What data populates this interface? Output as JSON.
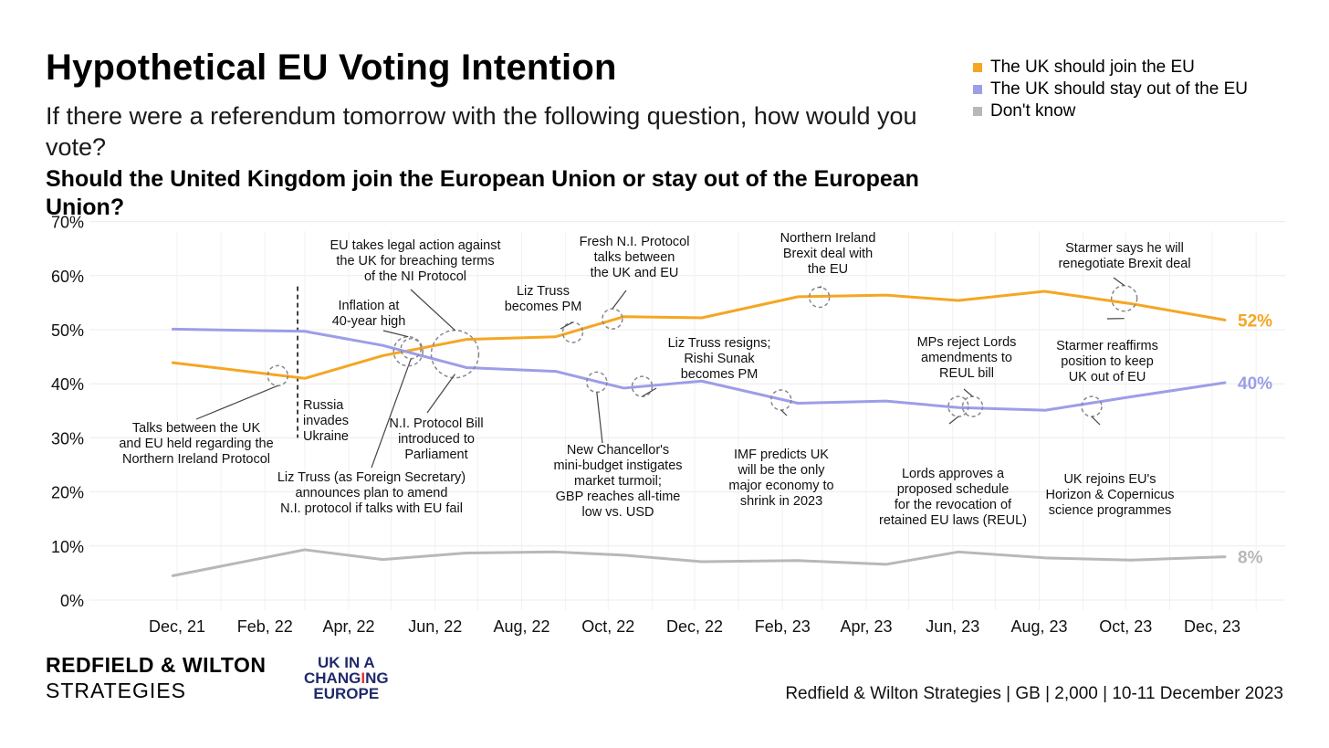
{
  "title": "Hypothetical EU Voting Intention",
  "subtitle": "If there were a referendum tomorrow with the following question, how would you vote?",
  "question": "Should the United Kingdom join the European Union or stay out of the European Union?",
  "legend": [
    {
      "label": "The UK should join the EU",
      "color": "#f5a623"
    },
    {
      "label": "The UK should stay out of the EU",
      "color": "#9c9ee8"
    },
    {
      "label": "Don't know",
      "color": "#b8b8b8"
    }
  ],
  "footer": {
    "logo_line1": "REDFIELD & WILTON",
    "logo_line2": "STRATEGIES",
    "logo2_line1": "UK IN A",
    "logo2_line2a": "CHANG",
    "logo2_line2b": "I",
    "logo2_line2c": "NG",
    "logo2_line3": "EUROPE",
    "source": "Redfield & Wilton Strategies | GB | 2,000 | 10-11 December 2023"
  },
  "chart_data": {
    "type": "line",
    "x_tick_labels": [
      "Dec, 21",
      "Feb, 22",
      "Apr, 22",
      "Jun, 22",
      "Aug, 22",
      "Oct, 22",
      "Dec, 22",
      "Feb, 23",
      "Apr, 23",
      "Jun, 23",
      "Aug, 23",
      "Oct, 23",
      "Dec, 23"
    ],
    "y_tick_labels": [
      "0%",
      "10%",
      "20%",
      "30%",
      "40%",
      "50%",
      "60%",
      "70%"
    ],
    "ylim": [
      0,
      70
    ],
    "grid": true,
    "legend_position": "top-right",
    "x": [
      "2021-11-28",
      "2022-03-01",
      "2022-04-25",
      "2022-06-23",
      "2022-08-25",
      "2022-10-12",
      "2022-12-06",
      "2023-02-12",
      "2023-04-15",
      "2023-06-05",
      "2023-08-05",
      "2023-10-05",
      "2023-12-10"
    ],
    "series": [
      {
        "name": "The UK should join the EU",
        "color": "#f5a623",
        "values": [
          43.9,
          41.0,
          45.2,
          48.2,
          48.7,
          52.4,
          52.2,
          56.1,
          56.4,
          55.4,
          57.1,
          54.8,
          51.8
        ],
        "end_label": "52%"
      },
      {
        "name": "The UK should stay out of the EU",
        "color": "#9c9ee8",
        "values": [
          50.1,
          49.7,
          47.1,
          43.0,
          42.3,
          39.2,
          40.5,
          36.4,
          36.8,
          35.6,
          35.1,
          37.6,
          40.2
        ],
        "end_label": "40%"
      },
      {
        "name": "Don't know",
        "color": "#b8b8b8",
        "values": [
          4.5,
          9.3,
          7.5,
          8.7,
          8.9,
          8.3,
          7.1,
          7.3,
          6.6,
          8.9,
          7.8,
          7.4,
          8.0
        ],
        "end_label": "8%"
      }
    ],
    "events": [
      {
        "date": "2022-02-24",
        "label": "Russia invades Ukraine",
        "lines": [
          "Russia",
          "invades",
          "Ukraine"
        ]
      }
    ],
    "annotations": [
      {
        "lines": [
          "Talks between the UK",
          "and EU held regarding the",
          "Northern Ireland Protocol"
        ],
        "date": "2022-02-10",
        "value": 41.5
      },
      {
        "lines": [
          "Liz Truss (as Foreign Secretary)",
          "announces plan to amend",
          "N.I. protocol if talks with EU fail"
        ],
        "date": "2022-05-15",
        "value": 46.5
      },
      {
        "lines": [
          "Inflation at",
          "40-year high"
        ],
        "date": "2022-05-13",
        "value": 46.0
      },
      {
        "lines": [
          "EU takes legal action against",
          "the UK for breaching terms",
          "of the NI Protocol"
        ],
        "date": "2022-06-15",
        "value": 45.5
      },
      {
        "lines": [
          "N.I. Protocol Bill",
          "introduced to",
          "Parliament"
        ],
        "date": "2022-06-15",
        "value": 45.5
      },
      {
        "lines": [
          "Liz Truss",
          "becomes PM"
        ],
        "date": "2022-09-06",
        "value": 49.5
      },
      {
        "lines": [
          "New Chancellor's",
          "mini-budget instigates",
          "market turmoil;",
          "GBP reaches all-time",
          "low vs. USD"
        ],
        "date": "2022-09-23",
        "value": 40.3
      },
      {
        "lines": [
          "Fresh N.I. Protocol",
          "talks between",
          "the UK and EU"
        ],
        "date": "2022-10-04",
        "value": 52.0
      },
      {
        "lines": [
          "Liz Truss resigns;",
          "Rishi Sunak",
          "becomes PM"
        ],
        "date": "2022-10-25",
        "value": 39.5
      },
      {
        "lines": [
          "IMF predicts UK",
          "will be the only",
          "major economy to",
          "shrink in 2023"
        ],
        "date": "2023-01-31",
        "value": 37.0
      },
      {
        "lines": [
          "Northern Ireland",
          "Brexit deal with",
          "the EU"
        ],
        "date": "2023-02-27",
        "value": 56.0
      },
      {
        "lines": [
          "Lords approves a",
          "proposed schedule",
          "for the revocation of",
          "retained EU laws (REUL)"
        ],
        "date": "2023-06-05",
        "value": 35.8
      },
      {
        "lines": [
          "MPs reject Lords",
          "amendments to",
          "REUL bill"
        ],
        "date": "2023-06-15",
        "value": 35.8
      },
      {
        "lines": [
          "UK rejoins EU's",
          "Horizon & Copernicus",
          "science programmes"
        ],
        "date": "2023-09-07",
        "value": 35.8
      },
      {
        "lines": [
          "Starmer says he will",
          "renegotiate Brexit deal"
        ],
        "date": "2023-09-30",
        "value": 55.8
      },
      {
        "lines": [
          "Starmer reaffirms",
          "position to keep",
          "UK out of EU"
        ],
        "date": "2023-09-30",
        "value": 55.8
      }
    ]
  }
}
